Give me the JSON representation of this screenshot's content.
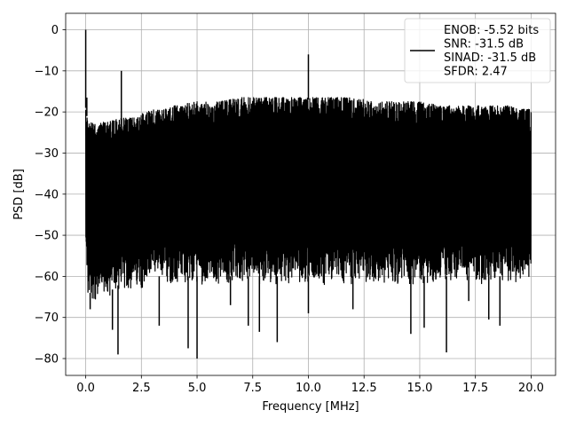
{
  "chart_data": {
    "type": "line",
    "title": "",
    "xlabel": "Frequency [MHz]",
    "ylabel": "PSD [dB]",
    "xlim": [
      -0.9,
      21.1
    ],
    "ylim": [
      -84.1,
      4.0
    ],
    "xticks": [
      0.0,
      2.5,
      5.0,
      7.5,
      10.0,
      12.5,
      15.0,
      17.5,
      20.0
    ],
    "xtick_labels": [
      "0.0",
      "2.5",
      "5.0",
      "7.5",
      "10.0",
      "12.5",
      "15.0",
      "17.5",
      "20.0"
    ],
    "yticks": [
      0,
      -10,
      -20,
      -30,
      -40,
      -50,
      -60,
      -70,
      -80
    ],
    "ytick_labels": [
      "0",
      "−10",
      "−20",
      "−30",
      "−40",
      "−50",
      "−60",
      "−70",
      "−80"
    ],
    "grid": true,
    "legend_position": "top-right",
    "series": [
      {
        "name": "ENOB: -5.52 bits\nSNR: -31.5 dB\nSINAD: -31.5 dB\nSFDR: 2.47",
        "color": "#000000",
        "description": "dense noise-like spectrum",
        "envelope": {
          "x": [
            0.0,
            0.1,
            0.5,
            1.0,
            1.5,
            2.0,
            2.5,
            3.0,
            3.5,
            4.0,
            5.0,
            6.0,
            7.0,
            8.0,
            9.0,
            10.0,
            11.0,
            12.0,
            13.0,
            14.0,
            15.0,
            16.0,
            17.0,
            18.0,
            19.0,
            20.0
          ],
          "upper": [
            -17,
            -21,
            -21,
            -21,
            -20,
            -20,
            -19,
            -18,
            -18,
            -17,
            -16,
            -16,
            -15,
            -15,
            -15,
            -15,
            -15,
            -15,
            -16,
            -16,
            -16,
            -17,
            -17,
            -17,
            -17,
            -18
          ],
          "lower": [
            -57,
            -66,
            -66,
            -66,
            -64,
            -64,
            -63,
            -62,
            -62,
            -62,
            -62,
            -62,
            -62,
            -62,
            -62,
            -62,
            -62,
            -62,
            -62,
            -62,
            -62,
            -62,
            -62,
            -62,
            -62,
            -60
          ]
        },
        "peaks": [
          {
            "x": 0.0,
            "y": 0.0
          },
          {
            "x": 1.6,
            "y": -10.0
          },
          {
            "x": 10.0,
            "y": -6.0
          },
          {
            "x": 0.05,
            "y": -16.5
          }
        ],
        "dips": [
          {
            "x": 1.45,
            "y": -79.0
          },
          {
            "x": 4.6,
            "y": -77.5
          },
          {
            "x": 5.0,
            "y": -80.0
          },
          {
            "x": 8.6,
            "y": -76.0
          },
          {
            "x": 16.2,
            "y": -78.5
          },
          {
            "x": 1.2,
            "y": -73.0
          },
          {
            "x": 3.3,
            "y": -72.0
          },
          {
            "x": 7.3,
            "y": -72.0
          },
          {
            "x": 7.8,
            "y": -73.5
          },
          {
            "x": 10.0,
            "y": -69.0
          },
          {
            "x": 14.6,
            "y": -74.0
          },
          {
            "x": 15.2,
            "y": -72.5
          },
          {
            "x": 18.6,
            "y": -72.0
          },
          {
            "x": 18.1,
            "y": -70.5
          },
          {
            "x": 17.2,
            "y": -66.0
          },
          {
            "x": 0.2,
            "y": -68.0
          },
          {
            "x": 6.5,
            "y": -67.0
          },
          {
            "x": 12.0,
            "y": -68.0
          }
        ]
      }
    ]
  }
}
